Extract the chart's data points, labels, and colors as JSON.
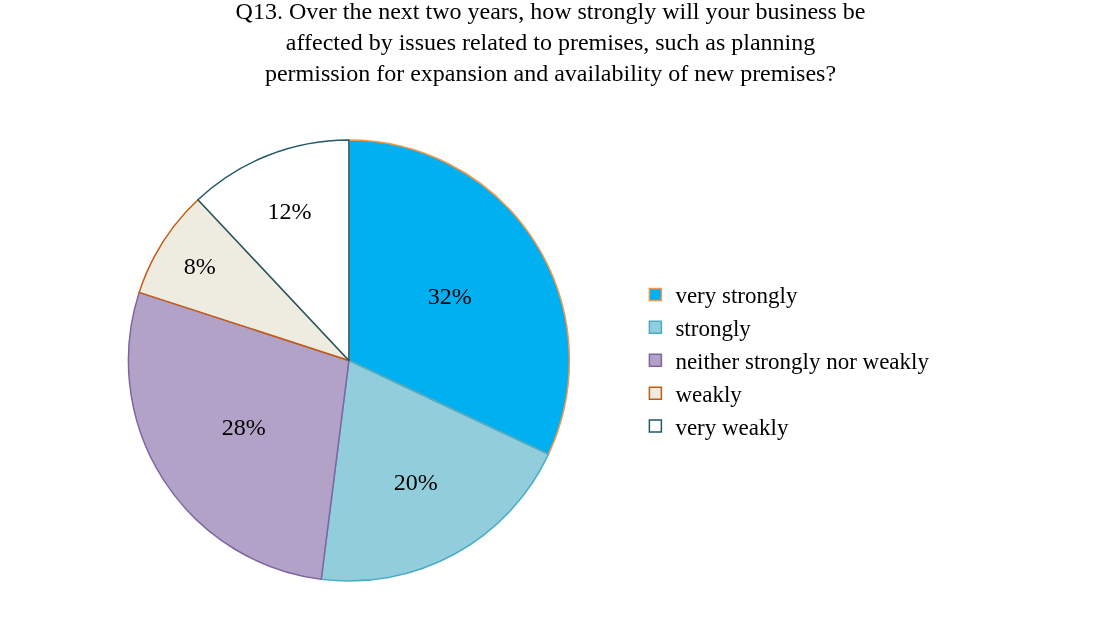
{
  "chart_data": {
    "type": "pie",
    "title": "Q13. Over the next two years, how strongly will your business be\naffected by issues related to premises, such as planning\npermission for expansion and availability of new premises?",
    "categories": [
      "very strongly",
      "strongly",
      "neither strongly nor weakly",
      "weakly",
      "very weakly"
    ],
    "values": [
      32,
      20,
      28,
      8,
      12
    ],
    "value_labels": [
      "32%",
      "20%",
      "28%",
      "8%",
      "12%"
    ],
    "colors": [
      "#00b0f0",
      "#92cddc",
      "#b3a2c7",
      "#eeece1",
      "#ffffff"
    ],
    "legend": "right"
  }
}
